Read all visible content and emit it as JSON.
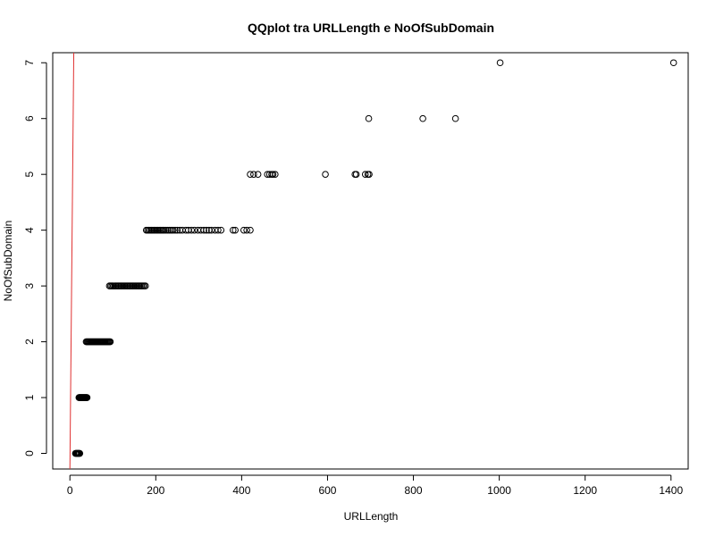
{
  "chart_data": {
    "type": "scatter",
    "title": "QQplot tra URLLength e NoOfSubDomain",
    "xlabel": "URLLength",
    "ylabel": "NoOfSubDomain",
    "xlim": [
      -40,
      1440
    ],
    "ylim": [
      -0.28,
      7.18
    ],
    "xticks": [
      0,
      200,
      400,
      600,
      800,
      1000,
      1200,
      1400
    ],
    "yticks": [
      0,
      1,
      2,
      3,
      4,
      5,
      6,
      7
    ],
    "grid": false,
    "legend": "none",
    "colors": {
      "points": "#000000",
      "reference_line": "#e03030",
      "frame": "#000000"
    },
    "reference_line": {
      "x1": 0,
      "y1": -0.28,
      "x2": 9,
      "y2": 7.18
    },
    "series": [
      {
        "y": 0,
        "x": [
          13,
          14,
          15,
          16,
          17,
          18,
          19,
          20,
          21,
          22,
          23
        ]
      },
      {
        "y": 1,
        "x": [
          21,
          22,
          23,
          24,
          25,
          26,
          27,
          28,
          29,
          30,
          31,
          32,
          33,
          34,
          35,
          36,
          37,
          38,
          39,
          40
        ]
      },
      {
        "y": 2,
        "x": [
          38,
          40,
          42,
          44,
          46,
          48,
          50,
          52,
          54,
          56,
          58,
          60,
          62,
          64,
          66,
          68,
          70,
          72,
          74,
          76,
          78,
          80,
          82,
          84,
          86,
          88,
          90,
          92,
          94
        ]
      },
      {
        "y": 3,
        "x": [
          92,
          95,
          98,
          101,
          104,
          107,
          110,
          113,
          116,
          119,
          122,
          125,
          128,
          131,
          134,
          137,
          140,
          143,
          146,
          149,
          152,
          155,
          158,
          161,
          164,
          167,
          170,
          173,
          176
        ]
      },
      {
        "y": 4,
        "x": [
          178,
          181,
          184,
          187,
          190,
          193,
          196,
          199,
          202,
          205,
          208,
          211,
          214,
          217,
          220,
          224,
          228,
          232,
          236,
          240,
          245,
          250,
          256,
          262,
          270,
          276,
          283,
          290,
          298,
          305,
          312,
          318,
          324,
          330,
          338,
          345,
          352,
          380,
          385,
          405,
          412,
          420
        ]
      },
      {
        "y": 5,
        "x": [
          420,
          428,
          438,
          460,
          465,
          470,
          473,
          478,
          595,
          664,
          667,
          688,
          694,
          697
        ]
      },
      {
        "y": 6,
        "x": [
          696,
          822,
          898
        ]
      },
      {
        "y": 7,
        "x": [
          1002,
          1406
        ]
      }
    ]
  }
}
